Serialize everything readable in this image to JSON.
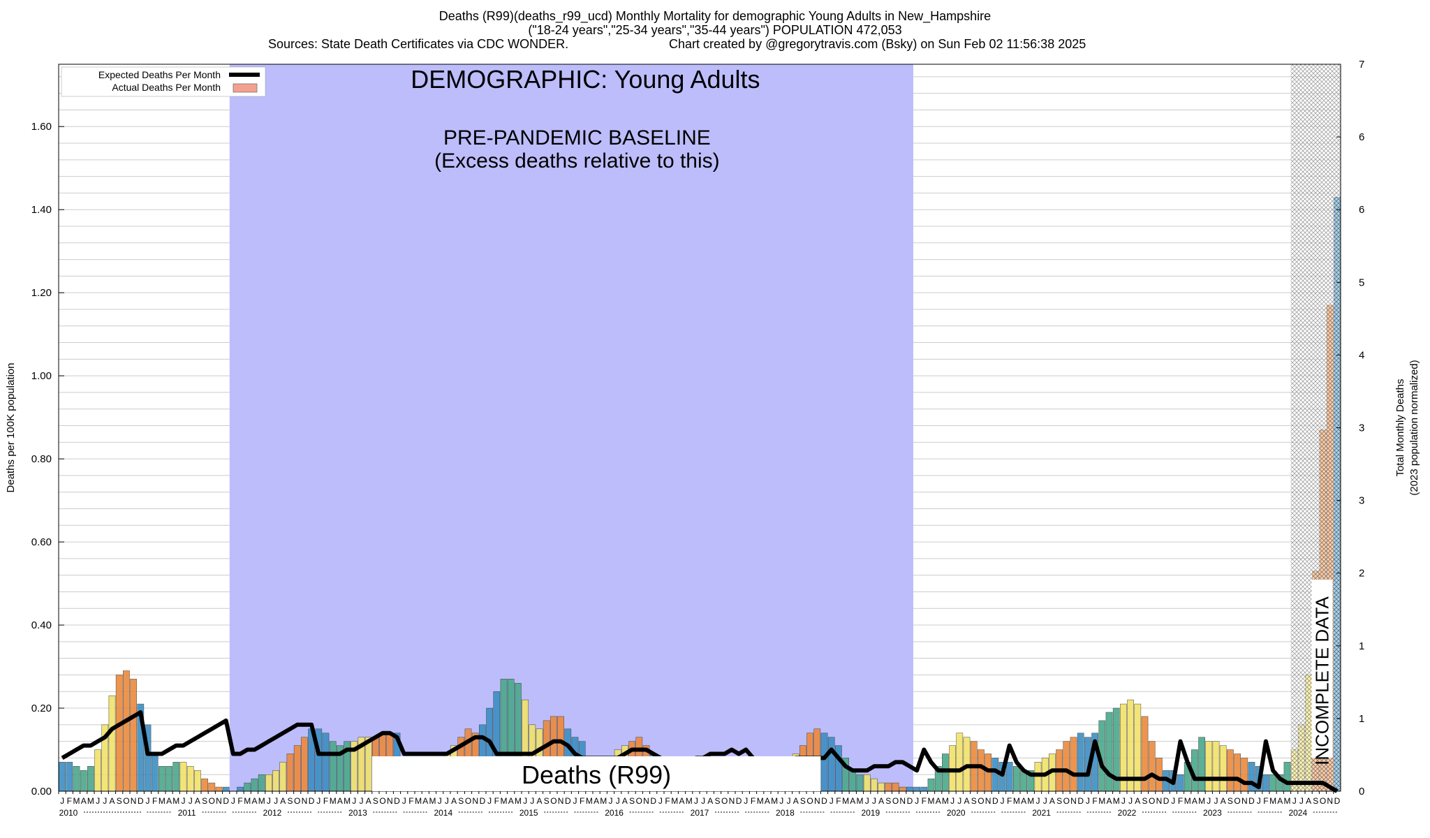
{
  "header": {
    "line1": "Deaths (R99)(deaths_r99_ucd) Monthly Mortality for demographic Young Adults in New_Hampshire",
    "line2": "(\"18-24 years\",\"25-34 years\",\"35-44 years\") POPULATION 472,053",
    "line3_left": "Sources: State Death Certificates via CDC WONDER.",
    "line3_right": "Chart created by @gregorytravis.com (Bsky) on Sun Feb 02 11:56:38 2025"
  },
  "annotations": {
    "demographic": "DEMOGRAPHIC: Young Adults",
    "baseline_line1": "PRE-PANDEMIC BASELINE",
    "baseline_line2": "(Excess deaths relative to this)",
    "cause": "Deaths (R99)",
    "incomplete": "INCOMPLETE DATA"
  },
  "colors": {
    "baseline_band": "#bdbdfc",
    "expected_line": "#000000",
    "actual_legend": "#f4a090",
    "winter": "#3b8fc4",
    "spring": "#4aa88a",
    "summer": "#f2e26a",
    "fall": "#ec8a3c",
    "grid": "#cccccc"
  },
  "chart_data": {
    "type": "bar",
    "title": "Deaths (R99)(deaths_r99_ucd) Monthly Mortality for demographic Young Adults in New_Hampshire",
    "ylabel": "Deaths per 100K population",
    "y2label_line1": "Total Monthly Deaths",
    "y2label_line2": "(2023 population normalized)",
    "ylim": [
      0,
      1.75
    ],
    "yticks": [
      "0.00",
      "0.20",
      "0.40",
      "0.60",
      "0.80",
      "1.00",
      "1.20",
      "1.40",
      "1.60"
    ],
    "y2lim": [
      0,
      7
    ],
    "y2ticks": [
      "0",
      "1",
      "1",
      "2",
      "3",
      "3",
      "4",
      "5",
      "6",
      "6",
      "7"
    ],
    "grid": true,
    "legend_position": "top-left",
    "legend": [
      "Expected Deaths Per Month",
      "Actual Deaths Per Month"
    ],
    "month_letters": [
      "J",
      "F",
      "M",
      "A",
      "M",
      "J",
      "J",
      "A",
      "S",
      "O",
      "N",
      "D"
    ],
    "years": [
      "2010",
      "2011",
      "2012",
      "2013",
      "2014",
      "2015",
      "2016",
      "2017",
      "2018",
      "2019",
      "2020",
      "2021",
      "2022",
      "2023",
      "2024"
    ],
    "baseline_period": [
      "2012-01",
      "2019-12"
    ],
    "incomplete_period": [
      "2024-06",
      "2024-12"
    ],
    "series": [
      {
        "name": "Actual Deaths Per Month",
        "values": [
          0.07,
          0.07,
          0.06,
          0.05,
          0.06,
          0.1,
          0.16,
          0.23,
          0.28,
          0.29,
          0.27,
          0.21,
          0.16,
          0.09,
          0.06,
          0.06,
          0.07,
          0.07,
          0.06,
          0.05,
          0.03,
          0.02,
          0.01,
          0.01,
          0.0,
          0.01,
          0.02,
          0.03,
          0.04,
          0.04,
          0.05,
          0.07,
          0.09,
          0.11,
          0.13,
          0.15,
          0.15,
          0.14,
          0.12,
          0.11,
          0.12,
          0.12,
          0.13,
          0.13,
          0.13,
          0.14,
          0.14,
          0.14,
          0.08,
          0.07,
          0.07,
          0.07,
          0.08,
          0.08,
          0.09,
          0.11,
          0.13,
          0.15,
          0.14,
          0.16,
          0.2,
          0.24,
          0.27,
          0.27,
          0.26,
          0.22,
          0.16,
          0.15,
          0.17,
          0.18,
          0.18,
          0.15,
          0.13,
          0.12,
          0.08,
          0.07,
          0.07,
          0.08,
          0.1,
          0.11,
          0.12,
          0.13,
          0.11,
          0.09,
          0.07,
          0.07,
          0.07,
          0.07,
          0.07,
          0.07,
          0.08,
          0.08,
          0.08,
          0.08,
          0.07,
          0.07,
          0.07,
          0.07,
          0.07,
          0.07,
          0.07,
          0.07,
          0.07,
          0.09,
          0.11,
          0.14,
          0.15,
          0.14,
          0.13,
          0.11,
          0.08,
          0.05,
          0.04,
          0.04,
          0.03,
          0.02,
          0.02,
          0.02,
          0.01,
          0.01,
          0.01,
          0.01,
          0.03,
          0.06,
          0.09,
          0.11,
          0.14,
          0.13,
          0.12,
          0.1,
          0.09,
          0.08,
          0.07,
          0.07,
          0.06,
          0.05,
          0.05,
          0.07,
          0.08,
          0.09,
          0.1,
          0.12,
          0.13,
          0.14,
          0.13,
          0.14,
          0.17,
          0.19,
          0.2,
          0.21,
          0.22,
          0.21,
          0.18,
          0.12,
          0.08,
          0.05,
          0.05,
          0.04,
          0.07,
          0.1,
          0.13,
          0.12,
          0.12,
          0.11,
          0.1,
          0.09,
          0.08,
          0.07,
          0.06,
          0.04,
          0.04,
          0.04,
          0.07,
          0.1,
          0.16,
          0.28,
          0.53,
          0.87,
          1.17,
          1.43
        ]
      },
      {
        "name": "Expected Deaths Per Month",
        "values": [
          0.08,
          0.09,
          0.1,
          0.11,
          0.11,
          0.12,
          0.13,
          0.15,
          0.16,
          0.17,
          0.18,
          0.19,
          0.09,
          0.09,
          0.09,
          0.1,
          0.11,
          0.11,
          0.12,
          0.13,
          0.14,
          0.15,
          0.16,
          0.17,
          0.09,
          0.09,
          0.1,
          0.1,
          0.11,
          0.12,
          0.13,
          0.14,
          0.15,
          0.16,
          0.16,
          0.16,
          0.09,
          0.09,
          0.09,
          0.09,
          0.1,
          0.1,
          0.11,
          0.12,
          0.13,
          0.14,
          0.14,
          0.13,
          0.09,
          0.09,
          0.09,
          0.09,
          0.09,
          0.09,
          0.09,
          0.1,
          0.11,
          0.12,
          0.13,
          0.13,
          0.12,
          0.09,
          0.09,
          0.09,
          0.09,
          0.09,
          0.09,
          0.1,
          0.11,
          0.12,
          0.12,
          0.11,
          0.09,
          0.08,
          0.08,
          0.08,
          0.08,
          0.08,
          0.08,
          0.09,
          0.1,
          0.1,
          0.1,
          0.09,
          0.08,
          0.07,
          0.07,
          0.07,
          0.07,
          0.08,
          0.08,
          0.09,
          0.09,
          0.09,
          0.1,
          0.09,
          0.1,
          0.08,
          0.07,
          0.07,
          0.07,
          0.07,
          0.07,
          0.08,
          0.08,
          0.08,
          0.08,
          0.08,
          0.1,
          0.08,
          0.06,
          0.05,
          0.05,
          0.05,
          0.06,
          0.06,
          0.06,
          0.07,
          0.07,
          0.06,
          0.05,
          0.1,
          0.07,
          0.05,
          0.05,
          0.05,
          0.05,
          0.06,
          0.06,
          0.06,
          0.05,
          0.05,
          0.04,
          0.11,
          0.07,
          0.05,
          0.04,
          0.04,
          0.04,
          0.05,
          0.05,
          0.05,
          0.04,
          0.04,
          0.04,
          0.12,
          0.06,
          0.04,
          0.03,
          0.03,
          0.03,
          0.03,
          0.03,
          0.04,
          0.03,
          0.03,
          0.02,
          0.12,
          0.07,
          0.03,
          0.03,
          0.03,
          0.03,
          0.03,
          0.03,
          0.03,
          0.02,
          0.02,
          0.01,
          0.12,
          0.05,
          0.03,
          0.02,
          0.02,
          0.02,
          0.02,
          0.02,
          0.02,
          0.01,
          0.0
        ]
      }
    ]
  }
}
